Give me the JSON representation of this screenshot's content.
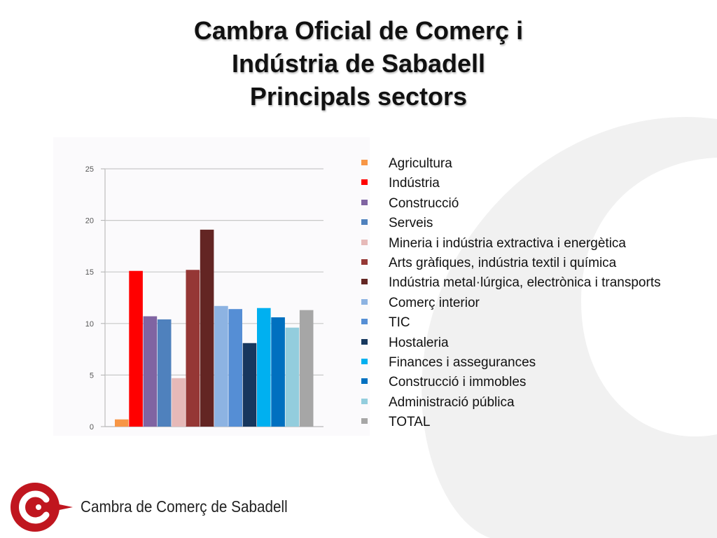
{
  "slide": {
    "title_lines": [
      "Cambra Oficial de Comerç i",
      "Indústria de Sabadell",
      "Principals sectors"
    ]
  },
  "chart_data": {
    "type": "bar",
    "title": "",
    "xlabel": "",
    "ylabel": "",
    "ylim": [
      0,
      25
    ],
    "yticks": [
      0,
      5,
      10,
      15,
      20,
      25
    ],
    "grid": true,
    "legend_position": "right",
    "categories": [
      "Agricultura",
      "Indústria",
      "Construcció",
      "Serveis",
      "Mineria i indústria extractiva i energètica",
      "Arts gràfiques, indústria textil i química",
      "Indústria metal·lúrgica, electrònica i transports",
      "Comerç interior",
      "TIC",
      "Hostaleria",
      "Finances i assegurances",
      "Construcció i immobles",
      "Administració pública",
      "TOTAL"
    ],
    "values": [
      0.7,
      15.1,
      10.7,
      10.4,
      4.7,
      15.2,
      19.1,
      11.7,
      11.4,
      8.1,
      11.5,
      10.6,
      9.6,
      11.3
    ],
    "colors": [
      "#f79646",
      "#ff0000",
      "#8064a2",
      "#4f81bd",
      "#e6b9b8",
      "#953735",
      "#632523",
      "#8db3e2",
      "#558ed5",
      "#17375e",
      "#00b0f0",
      "#0070c0",
      "#93cddd",
      "#a6a6a6"
    ]
  },
  "footer": {
    "org_name": "Cambra de Comerç de Sabadell",
    "logo_color": "#c0161f"
  }
}
